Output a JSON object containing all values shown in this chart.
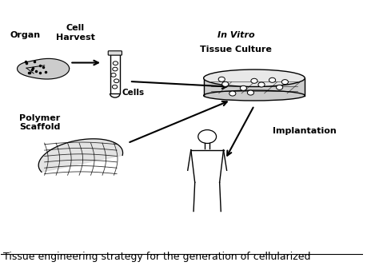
{
  "title_text": "Tissue engineering strategy for the generation of cellularized",
  "title_fontsize": 9,
  "labels": {
    "organ": "Organ",
    "cell_harvest": "Cell\nHarvest",
    "cells": "Cells",
    "polymer_scaffold": "Polymer\nScaffold",
    "in_vitro_italic": "In Vitro",
    "tissue_culture": "Tissue Culture",
    "implantation": "Implantation"
  },
  "fig_width": 4.74,
  "fig_height": 3.38,
  "dpi": 100
}
